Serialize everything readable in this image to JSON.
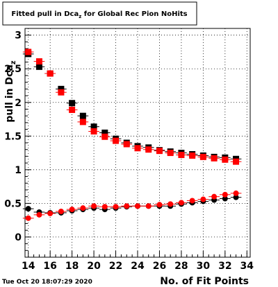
{
  "chart_data": {
    "type": "scatter",
    "title": "Fitted pull in Dca",
    "title_subscript": "z",
    "title_suffix": " for Global Rec Pion NoHits",
    "xlabel": "No. of Fit Points",
    "ylabel": "pull in Dca",
    "ylabel_subscript": "z",
    "xlim": [
      13.7,
      34.3
    ],
    "ylim": [
      -0.3,
      3.1
    ],
    "x_ticks": [
      14,
      16,
      18,
      20,
      22,
      24,
      26,
      28,
      30,
      32,
      34
    ],
    "y_ticks": [
      0,
      0.5,
      1,
      1.5,
      2,
      2.5,
      3
    ],
    "y_tick_labels": [
      "0",
      "0.5",
      "1",
      "1.5",
      "2",
      "2.5",
      "3"
    ],
    "grid": true,
    "timestamp": "Tue Oct 20 18:07:29 2020",
    "series": [
      {
        "color": "#000000",
        "marker": "square",
        "x": [
          14,
          15,
          16,
          17,
          18,
          19,
          20,
          21,
          22,
          23,
          24,
          25,
          26,
          27,
          28,
          29,
          30,
          31,
          32,
          33
        ],
        "y": [
          2.72,
          2.53,
          2.43,
          2.2,
          1.99,
          1.8,
          1.64,
          1.55,
          1.46,
          1.4,
          1.35,
          1.33,
          1.29,
          1.27,
          1.25,
          1.23,
          1.21,
          1.19,
          1.18,
          1.16
        ]
      },
      {
        "color": "#ff0000",
        "marker": "square",
        "x": [
          14,
          15,
          16,
          17,
          18,
          19,
          20,
          21,
          22,
          23,
          24,
          25,
          26,
          27,
          28,
          29,
          30,
          31,
          32,
          33
        ],
        "y": [
          2.75,
          2.61,
          2.43,
          2.15,
          1.89,
          1.71,
          1.57,
          1.49,
          1.43,
          1.38,
          1.32,
          1.3,
          1.28,
          1.25,
          1.22,
          1.21,
          1.19,
          1.17,
          1.15,
          1.12
        ]
      },
      {
        "color": "#000000",
        "marker": "circle",
        "x": [
          14,
          15,
          16,
          17,
          18,
          19,
          20,
          21,
          22,
          23,
          24,
          25,
          26,
          27,
          28,
          29,
          30,
          31,
          32,
          33
        ],
        "y": [
          0.42,
          0.37,
          0.36,
          0.36,
          0.39,
          0.41,
          0.43,
          0.41,
          0.43,
          0.45,
          0.46,
          0.46,
          0.46,
          0.46,
          0.49,
          0.51,
          0.53,
          0.55,
          0.57,
          0.59
        ]
      },
      {
        "color": "#ff0000",
        "marker": "circle",
        "x": [
          14,
          15,
          16,
          17,
          18,
          19,
          20,
          21,
          22,
          23,
          24,
          25,
          26,
          27,
          28,
          29,
          30,
          31,
          32,
          33
        ],
        "y": [
          0.28,
          0.33,
          0.35,
          0.38,
          0.41,
          0.43,
          0.46,
          0.45,
          0.45,
          0.46,
          0.46,
          0.46,
          0.48,
          0.49,
          0.51,
          0.54,
          0.56,
          0.6,
          0.63,
          0.65
        ]
      }
    ]
  }
}
